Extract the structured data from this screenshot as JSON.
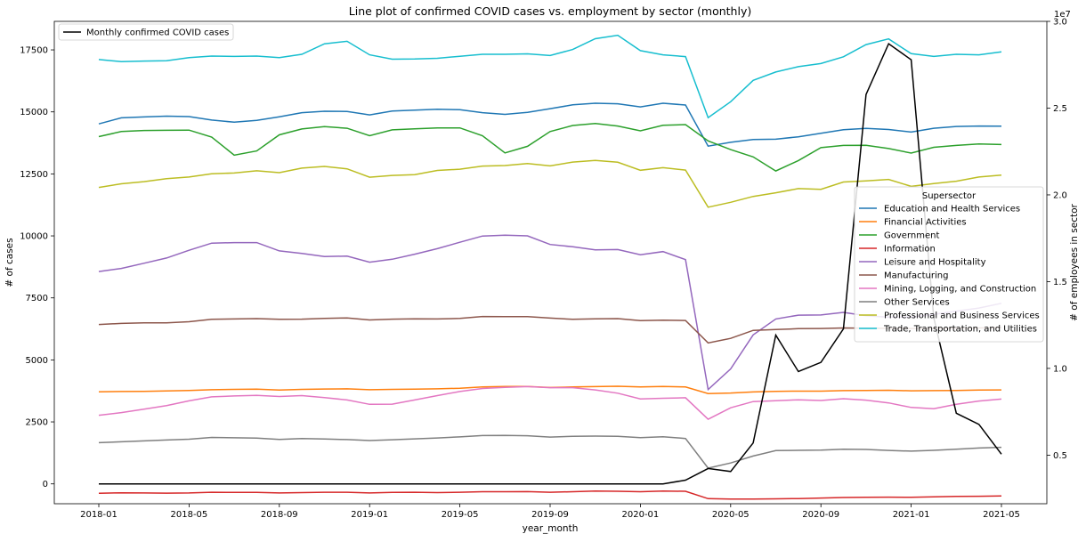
{
  "chart_data": {
    "type": "line",
    "title": "Line plot of confirmed COVID cases vs. employment by sector (monthly)",
    "xlabel": "year_month",
    "ylabel_left": "# of cases",
    "ylabel_right": "# of employees in sector",
    "right_axis_offset_label": "1e7",
    "x_tick_labels": [
      "2018-01",
      "2018-05",
      "2018-09",
      "2019-01",
      "2019-05",
      "2019-09",
      "2020-01",
      "2020-05",
      "2020-09",
      "2021-01",
      "2021-05"
    ],
    "x_ticks": [
      "2018-01",
      "2018-05",
      "2018-09",
      "2019-01",
      "2019-05",
      "2019-09",
      "2020-01",
      "2020-05",
      "2020-09",
      "2021-01",
      "2021-05"
    ],
    "left_ylim": [
      -800,
      18650
    ],
    "left_y_ticks": [
      0,
      2500,
      5000,
      7500,
      10000,
      12500,
      15000,
      17500
    ],
    "left_y_tick_labels": [
      "0",
      "2500",
      "5000",
      "7500",
      "10000",
      "12500",
      "15000",
      "17500"
    ],
    "right_ylim": [
      0.22,
      3.0
    ],
    "right_y_ticks": [
      0.5,
      1.0,
      1.5,
      2.0,
      2.5,
      3.0
    ],
    "right_y_tick_labels": [
      "0.5",
      "1.0",
      "1.5",
      "2.0",
      "2.5",
      "3.0"
    ],
    "grid": false,
    "x": [
      "2018-01",
      "2018-02",
      "2018-03",
      "2018-04",
      "2018-05",
      "2018-06",
      "2018-07",
      "2018-08",
      "2018-09",
      "2018-10",
      "2018-11",
      "2018-12",
      "2019-01",
      "2019-02",
      "2019-03",
      "2019-04",
      "2019-05",
      "2019-06",
      "2019-07",
      "2019-08",
      "2019-09",
      "2019-10",
      "2019-11",
      "2019-12",
      "2020-01",
      "2020-02",
      "2020-03",
      "2020-04",
      "2020-05",
      "2020-06",
      "2020-07",
      "2020-08",
      "2020-09",
      "2020-10",
      "2020-11",
      "2020-12",
      "2021-01",
      "2021-02",
      "2021-03",
      "2021-04",
      "2021-05"
    ],
    "cases_series": {
      "name": "Monthly confirmed COVID cases",
      "color": "#000000",
      "axis": "left",
      "legend_position": "upper-left",
      "values": [
        0,
        0,
        0,
        0,
        0,
        0,
        0,
        0,
        0,
        0,
        0,
        0,
        0,
        0,
        0,
        0,
        0,
        0,
        0,
        0,
        0,
        0,
        0,
        0,
        0,
        0,
        150,
        620,
        500,
        1650,
        6000,
        4530,
        4900,
        6250,
        15700,
        17750,
        17100,
        6700,
        2850,
        2400,
        1200
      ]
    },
    "legend_title": "Supersector",
    "legend_position": "center-right",
    "sector_series": [
      {
        "name": "Education and Health Services",
        "color": "#1f77b4",
        "axis": "right",
        "values": [
          2.409,
          2.444,
          2.449,
          2.454,
          2.451,
          2.431,
          2.419,
          2.429,
          2.45,
          2.474,
          2.482,
          2.481,
          2.461,
          2.483,
          2.488,
          2.493,
          2.491,
          2.474,
          2.464,
          2.476,
          2.497,
          2.519,
          2.528,
          2.525,
          2.507,
          2.528,
          2.518,
          2.281,
          2.303,
          2.319,
          2.321,
          2.335,
          2.355,
          2.376,
          2.383,
          2.377,
          2.362,
          2.384,
          2.394,
          2.397,
          2.396
        ]
      },
      {
        "name": "Financial Activities",
        "color": "#ff7f0e",
        "axis": "right",
        "values": [
          0.865,
          0.867,
          0.868,
          0.87,
          0.873,
          0.877,
          0.879,
          0.88,
          0.875,
          0.879,
          0.881,
          0.882,
          0.877,
          0.879,
          0.88,
          0.882,
          0.886,
          0.893,
          0.896,
          0.896,
          0.89,
          0.893,
          0.895,
          0.897,
          0.893,
          0.896,
          0.893,
          0.855,
          0.858,
          0.864,
          0.868,
          0.869,
          0.869,
          0.872,
          0.873,
          0.874,
          0.871,
          0.872,
          0.873,
          0.875,
          0.876
        ]
      },
      {
        "name": "Government",
        "color": "#2ca02c",
        "axis": "right",
        "values": [
          2.336,
          2.365,
          2.371,
          2.372,
          2.373,
          2.333,
          2.229,
          2.253,
          2.346,
          2.38,
          2.393,
          2.384,
          2.341,
          2.375,
          2.381,
          2.386,
          2.386,
          2.341,
          2.242,
          2.28,
          2.365,
          2.4,
          2.411,
          2.397,
          2.369,
          2.401,
          2.405,
          2.311,
          2.261,
          2.219,
          2.138,
          2.198,
          2.272,
          2.285,
          2.286,
          2.267,
          2.241,
          2.274,
          2.285,
          2.293,
          2.29
        ]
      },
      {
        "name": "Information",
        "color": "#d62728",
        "axis": "right",
        "values": [
          0.28,
          0.283,
          0.282,
          0.281,
          0.282,
          0.286,
          0.285,
          0.285,
          0.282,
          0.284,
          0.286,
          0.286,
          0.282,
          0.285,
          0.286,
          0.284,
          0.286,
          0.289,
          0.289,
          0.29,
          0.286,
          0.289,
          0.293,
          0.292,
          0.289,
          0.293,
          0.292,
          0.249,
          0.247,
          0.247,
          0.248,
          0.25,
          0.253,
          0.256,
          0.257,
          0.258,
          0.257,
          0.26,
          0.262,
          0.263,
          0.265
        ]
      },
      {
        "name": "Leisure and Hospitality",
        "color": "#9467bd",
        "axis": "right",
        "values": [
          1.558,
          1.576,
          1.606,
          1.636,
          1.681,
          1.722,
          1.725,
          1.725,
          1.677,
          1.663,
          1.645,
          1.647,
          1.612,
          1.629,
          1.658,
          1.69,
          1.727,
          1.763,
          1.768,
          1.764,
          1.714,
          1.701,
          1.683,
          1.685,
          1.655,
          1.673,
          1.627,
          0.878,
          0.997,
          1.193,
          1.285,
          1.307,
          1.308,
          1.323,
          1.304,
          1.295,
          1.295,
          1.311,
          1.33,
          1.348,
          1.375
        ]
      },
      {
        "name": "Manufacturing",
        "color": "#8c564b",
        "axis": "right",
        "values": [
          1.253,
          1.259,
          1.262,
          1.263,
          1.269,
          1.283,
          1.285,
          1.287,
          1.283,
          1.284,
          1.288,
          1.291,
          1.279,
          1.284,
          1.286,
          1.285,
          1.288,
          1.299,
          1.298,
          1.298,
          1.29,
          1.283,
          1.286,
          1.287,
          1.275,
          1.278,
          1.276,
          1.147,
          1.173,
          1.219,
          1.224,
          1.229,
          1.23,
          1.233,
          1.232,
          1.231,
          1.23,
          1.231,
          1.232,
          1.233,
          1.236
        ]
      },
      {
        "name": "Mining, Logging, and Construction",
        "color": "#e377c2",
        "axis": "right",
        "values": [
          0.73,
          0.745,
          0.765,
          0.786,
          0.813,
          0.836,
          0.841,
          0.844,
          0.838,
          0.843,
          0.832,
          0.818,
          0.793,
          0.794,
          0.818,
          0.843,
          0.867,
          0.884,
          0.891,
          0.895,
          0.889,
          0.889,
          0.876,
          0.857,
          0.824,
          0.828,
          0.831,
          0.707,
          0.773,
          0.809,
          0.814,
          0.819,
          0.815,
          0.825,
          0.817,
          0.801,
          0.775,
          0.768,
          0.793,
          0.812,
          0.823
        ]
      },
      {
        "name": "Other Services",
        "color": "#7f7f7f",
        "axis": "right",
        "values": [
          0.572,
          0.577,
          0.582,
          0.587,
          0.592,
          0.602,
          0.6,
          0.598,
          0.591,
          0.596,
          0.593,
          0.59,
          0.584,
          0.589,
          0.594,
          0.599,
          0.605,
          0.613,
          0.614,
          0.612,
          0.604,
          0.609,
          0.61,
          0.609,
          0.601,
          0.606,
          0.596,
          0.425,
          0.455,
          0.495,
          0.526,
          0.528,
          0.529,
          0.534,
          0.533,
          0.527,
          0.523,
          0.528,
          0.534,
          0.541,
          0.545
        ]
      },
      {
        "name": "Professional and Business Services",
        "color": "#bcbd22",
        "axis": "right",
        "values": [
          2.043,
          2.064,
          2.076,
          2.093,
          2.103,
          2.122,
          2.126,
          2.139,
          2.128,
          2.154,
          2.164,
          2.15,
          2.102,
          2.112,
          2.117,
          2.141,
          2.148,
          2.166,
          2.169,
          2.181,
          2.167,
          2.189,
          2.199,
          2.188,
          2.142,
          2.157,
          2.143,
          1.929,
          1.957,
          1.991,
          2.012,
          2.036,
          2.032,
          2.074,
          2.081,
          2.089,
          2.049,
          2.065,
          2.079,
          2.103,
          2.114
        ]
      },
      {
        "name": "Trade, Transportation, and Utilities",
        "color": "#17becf",
        "axis": "right",
        "values": [
          2.78,
          2.768,
          2.771,
          2.773,
          2.791,
          2.8,
          2.798,
          2.8,
          2.791,
          2.81,
          2.871,
          2.885,
          2.807,
          2.782,
          2.783,
          2.787,
          2.799,
          2.81,
          2.81,
          2.813,
          2.803,
          2.838,
          2.9,
          2.92,
          2.831,
          2.807,
          2.797,
          2.445,
          2.537,
          2.66,
          2.708,
          2.739,
          2.757,
          2.796,
          2.866,
          2.899,
          2.814,
          2.798,
          2.81,
          2.807,
          2.824
        ]
      }
    ]
  }
}
